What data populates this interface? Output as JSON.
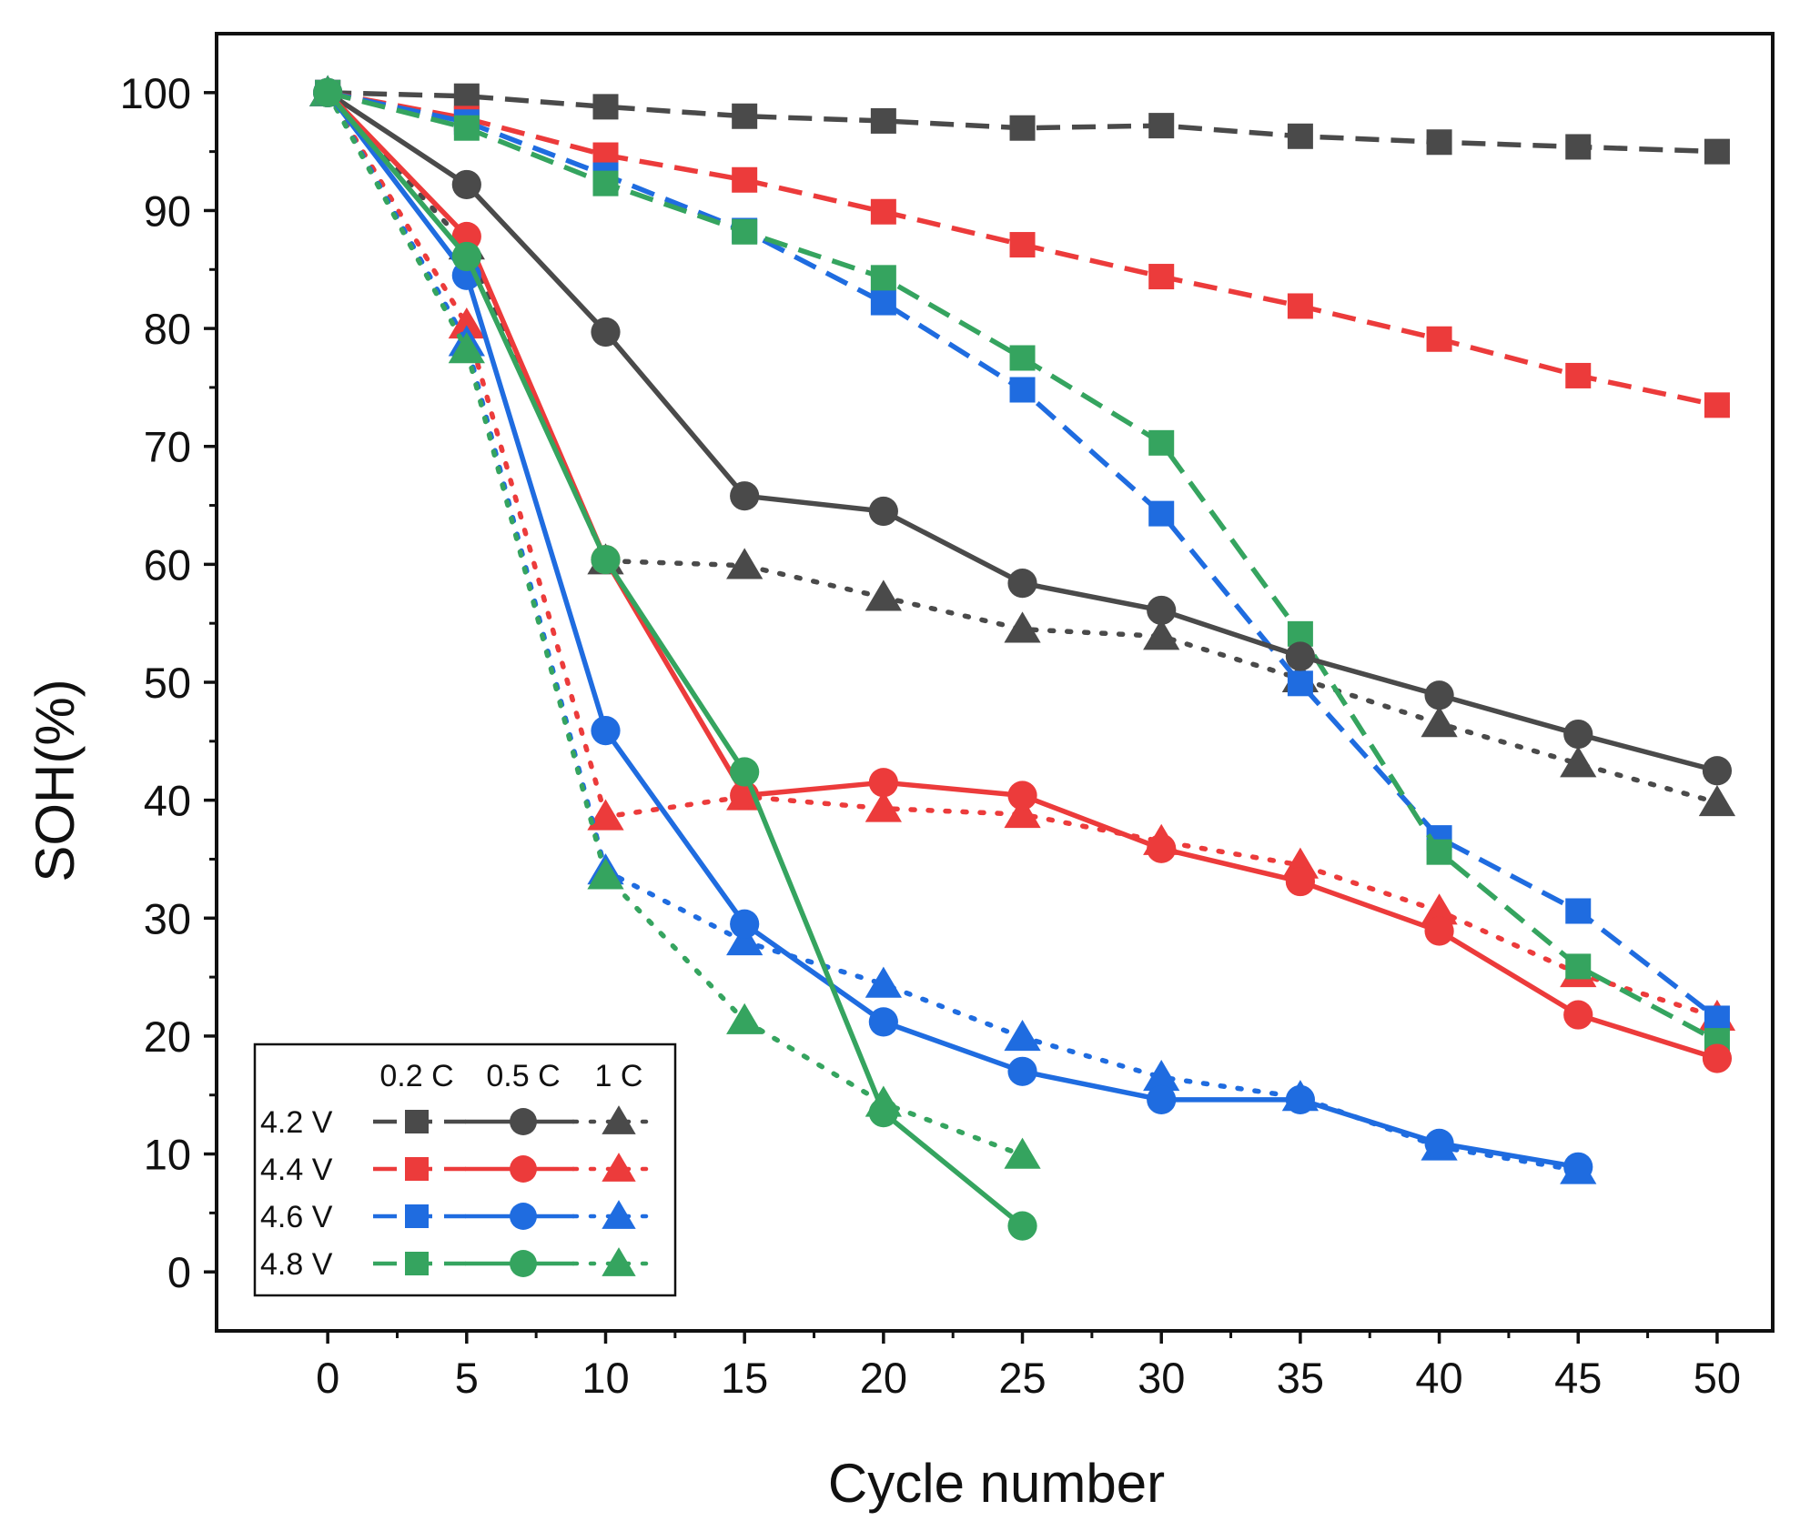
{
  "chart_data": {
    "type": "line",
    "title": "",
    "xlabel": "Cycle number",
    "ylabel": "SOH(%)",
    "xlim": [
      -4,
      52
    ],
    "ylim": [
      -5,
      105
    ],
    "xticks": [
      0,
      5,
      10,
      15,
      20,
      25,
      30,
      35,
      40,
      45,
      50
    ],
    "yticks": [
      0,
      10,
      20,
      30,
      40,
      50,
      60,
      70,
      80,
      90,
      100
    ],
    "grid": false,
    "legend": {
      "position": "bottom-left",
      "columns": [
        "0.2 C",
        "0.5 C",
        "1 C"
      ],
      "rows": [
        "4.2 V",
        "4.4 V",
        "4.6 V",
        "4.8 V"
      ]
    },
    "colors": {
      "4.2 V": "#4a4a4a",
      "4.4 V": "#ec3b3b",
      "4.6 V": "#1f6ce0",
      "4.8 V": "#35a45f"
    },
    "rate_styles": {
      "0.2 C": {
        "marker": "square",
        "line": "dashed"
      },
      "0.5 C": {
        "marker": "circle",
        "line": "solid"
      },
      "1 C": {
        "marker": "triangle",
        "line": "dotted"
      }
    },
    "series": [
      {
        "name": "4.2 V 0.2 C",
        "voltage": "4.2 V",
        "rate": "0.2 C",
        "x": [
          0,
          5,
          10,
          15,
          20,
          25,
          30,
          35,
          40,
          45,
          50
        ],
        "values": [
          100,
          99.7,
          98.8,
          98,
          97.6,
          97,
          97.2,
          96.3,
          95.8,
          95.4,
          95
        ]
      },
      {
        "name": "4.4 V 0.2 C",
        "voltage": "4.4 V",
        "rate": "0.2 C",
        "x": [
          0,
          5,
          10,
          15,
          20,
          25,
          30,
          35,
          40,
          45,
          50
        ],
        "values": [
          100,
          97.8,
          94.7,
          92.6,
          89.9,
          87.1,
          84.4,
          81.9,
          79.1,
          76,
          73.5
        ]
      },
      {
        "name": "4.6 V 0.2 C",
        "voltage": "4.6 V",
        "rate": "0.2 C",
        "x": [
          0,
          5,
          10,
          15,
          20,
          25,
          30,
          35,
          40,
          45,
          50
        ],
        "values": [
          100,
          97.5,
          93,
          88.3,
          82.2,
          74.8,
          64.3,
          49.9,
          36.8,
          30.6,
          21.5
        ]
      },
      {
        "name": "4.8 V 0.2 C",
        "voltage": "4.8 V",
        "rate": "0.2 C",
        "x": [
          0,
          5,
          10,
          15,
          20,
          25,
          30,
          35,
          40,
          45,
          50
        ],
        "values": [
          100,
          97,
          92.3,
          88.2,
          84.3,
          77.5,
          70.3,
          54.1,
          35.6,
          25.9,
          19.6
        ]
      },
      {
        "name": "4.2 V 0.5 C",
        "voltage": "4.2 V",
        "rate": "0.5 C",
        "x": [
          0,
          5,
          10,
          15,
          20,
          25,
          30,
          35,
          40,
          45,
          50
        ],
        "values": [
          100,
          92.2,
          79.7,
          65.8,
          64.5,
          58.4,
          56.1,
          52.2,
          48.9,
          45.6,
          42.5
        ]
      },
      {
        "name": "4.4 V 0.5 C",
        "voltage": "4.4 V",
        "rate": "0.5 C",
        "x": [
          0,
          5,
          10,
          15,
          20,
          25,
          30,
          35,
          40,
          45,
          50
        ],
        "values": [
          100,
          87.8,
          60.4,
          40.4,
          41.5,
          40.4,
          35.9,
          33.1,
          28.9,
          21.8,
          18.1
        ]
      },
      {
        "name": "4.6 V 0.5 C",
        "voltage": "4.6 V",
        "rate": "0.5 C",
        "x": [
          0,
          5,
          10,
          15,
          20,
          25,
          30,
          35,
          40,
          45
        ],
        "values": [
          100,
          84.5,
          45.9,
          29.5,
          21.2,
          17,
          14.6,
          14.6,
          10.9,
          8.9
        ]
      },
      {
        "name": "4.8 V 0.5 C",
        "voltage": "4.8 V",
        "rate": "0.5 C",
        "x": [
          0,
          5,
          10,
          15,
          20,
          25
        ],
        "values": [
          100,
          86.1,
          60.4,
          42.4,
          13.5,
          3.9
        ]
      },
      {
        "name": "4.2 V 1 C",
        "voltage": "4.2 V",
        "rate": "1 C",
        "x": [
          0,
          5,
          10,
          15,
          20,
          25,
          30,
          35,
          40,
          45,
          50
        ],
        "values": [
          100,
          87,
          60.3,
          59.9,
          57.2,
          54.5,
          53.9,
          50.3,
          46.5,
          43.1,
          39.8
        ]
      },
      {
        "name": "4.4 V 1 C",
        "voltage": "4.4 V",
        "rate": "1 C",
        "x": [
          0,
          5,
          10,
          15,
          20,
          25,
          30,
          35,
          40,
          45,
          50
        ],
        "values": [
          100,
          80.3,
          38.6,
          40.3,
          39.3,
          38.8,
          36.5,
          34.5,
          30.6,
          25.3,
          21.6
        ]
      },
      {
        "name": "4.6 V 1 C",
        "voltage": "4.6 V",
        "rate": "1 C",
        "x": [
          0,
          5,
          10,
          15,
          20,
          25,
          30,
          35,
          40,
          45
        ],
        "values": [
          100,
          78.8,
          34,
          28,
          24.4,
          19.9,
          16.5,
          14.8,
          10.6,
          8.6
        ]
      },
      {
        "name": "4.8 V 1 C",
        "voltage": "4.8 V",
        "rate": "1 C",
        "x": [
          0,
          5,
          10,
          15,
          20,
          25
        ],
        "values": [
          100,
          78.2,
          33.6,
          21.3,
          14.3,
          9.9
        ]
      }
    ]
  }
}
